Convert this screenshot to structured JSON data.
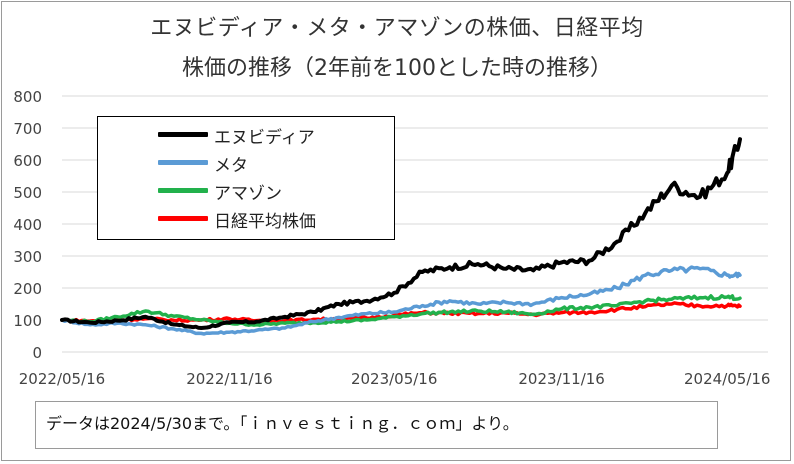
{
  "title_line1": "エヌビディア・メタ・アマゾンの株価、日経平均",
  "title_line2": "株価の推移（2年前を100とした時の推移）",
  "note": "データは2024/5/30まで。「ｉｎｖｅｓｔｉｎｇ．ｃｏｍ」より。",
  "chart_data": {
    "type": "line",
    "title": "エヌビディア・メタ・アマゾンの株価、日経平均 株価の推移（2年前を100とした時の推移）",
    "x_tick_labels": [
      "2022/05/16",
      "2022/11/16",
      "2023/05/16",
      "2023/11/16",
      "2024/05/16"
    ],
    "y_tick_labels": [
      "0",
      "100",
      "200",
      "300",
      "400",
      "500",
      "600",
      "700",
      "800"
    ],
    "xlim": [
      "2022/05/16",
      "2024/05/30"
    ],
    "ylim": [
      0,
      800
    ],
    "grid": "horizontal",
    "legend_position": "upper-left",
    "series": [
      {
        "name": "エヌビディア",
        "color": "#000000",
        "points": [
          [
            "2022/05/16",
            100
          ],
          [
            "2022/06/16",
            92
          ],
          [
            "2022/07/16",
            98
          ],
          [
            "2022/08/16",
            110
          ],
          [
            "2022/09/16",
            86
          ],
          [
            "2022/10/16",
            75
          ],
          [
            "2022/11/16",
            92
          ],
          [
            "2022/12/16",
            95
          ],
          [
            "2023/01/16",
            110
          ],
          [
            "2023/02/16",
            125
          ],
          [
            "2023/03/16",
            150
          ],
          [
            "2023/04/16",
            160
          ],
          [
            "2023/05/16",
            185
          ],
          [
            "2023/06/16",
            250
          ],
          [
            "2023/07/16",
            265
          ],
          [
            "2023/08/16",
            275
          ],
          [
            "2023/09/16",
            260
          ],
          [
            "2023/10/16",
            255
          ],
          [
            "2023/11/16",
            280
          ],
          [
            "2023/12/16",
            285
          ],
          [
            "2024/01/16",
            345
          ],
          [
            "2024/02/16",
            435
          ],
          [
            "2024/03/16",
            520
          ],
          [
            "2024/04/16",
            485
          ],
          [
            "2024/05/16",
            560
          ],
          [
            "2024/05/30",
            665
          ]
        ]
      },
      {
        "name": "メタ",
        "color": "#5b9bd5",
        "points": [
          [
            "2022/05/16",
            100
          ],
          [
            "2022/06/16",
            85
          ],
          [
            "2022/07/16",
            90
          ],
          [
            "2022/08/16",
            85
          ],
          [
            "2022/09/16",
            72
          ],
          [
            "2022/10/16",
            58
          ],
          [
            "2022/11/16",
            62
          ],
          [
            "2022/12/16",
            68
          ],
          [
            "2023/01/16",
            75
          ],
          [
            "2023/02/16",
            95
          ],
          [
            "2023/03/16",
            108
          ],
          [
            "2023/04/16",
            120
          ],
          [
            "2023/05/16",
            125
          ],
          [
            "2023/06/16",
            145
          ],
          [
            "2023/07/16",
            160
          ],
          [
            "2023/08/16",
            150
          ],
          [
            "2023/09/16",
            155
          ],
          [
            "2023/10/16",
            150
          ],
          [
            "2023/11/16",
            170
          ],
          [
            "2023/12/16",
            180
          ],
          [
            "2024/01/16",
            200
          ],
          [
            "2024/02/16",
            240
          ],
          [
            "2024/03/16",
            255
          ],
          [
            "2024/04/16",
            260
          ],
          [
            "2024/05/16",
            240
          ],
          [
            "2024/05/30",
            240
          ]
        ]
      },
      {
        "name": "アマゾン",
        "color": "#22b14c",
        "points": [
          [
            "2022/05/16",
            100
          ],
          [
            "2022/06/16",
            95
          ],
          [
            "2022/07/16",
            110
          ],
          [
            "2022/08/16",
            128
          ],
          [
            "2022/09/16",
            112
          ],
          [
            "2022/10/16",
            100
          ],
          [
            "2022/11/16",
            90
          ],
          [
            "2022/12/16",
            85
          ],
          [
            "2023/01/16",
            90
          ],
          [
            "2023/02/16",
            92
          ],
          [
            "2023/03/16",
            95
          ],
          [
            "2023/04/16",
            100
          ],
          [
            "2023/05/16",
            110
          ],
          [
            "2023/06/16",
            120
          ],
          [
            "2023/07/16",
            125
          ],
          [
            "2023/08/16",
            128
          ],
          [
            "2023/09/16",
            125
          ],
          [
            "2023/10/16",
            118
          ],
          [
            "2023/11/16",
            135
          ],
          [
            "2023/12/16",
            140
          ],
          [
            "2024/01/16",
            145
          ],
          [
            "2024/02/16",
            160
          ],
          [
            "2024/03/16",
            165
          ],
          [
            "2024/04/16",
            170
          ],
          [
            "2024/05/16",
            172
          ],
          [
            "2024/05/30",
            168
          ]
        ]
      },
      {
        "name": "日経平均株価",
        "color": "#ff0000",
        "points": [
          [
            "2022/05/16",
            100
          ],
          [
            "2022/06/16",
            97
          ],
          [
            "2022/07/16",
            100
          ],
          [
            "2022/08/16",
            104
          ],
          [
            "2022/09/16",
            99
          ],
          [
            "2022/10/16",
            100
          ],
          [
            "2022/11/16",
            104
          ],
          [
            "2022/12/16",
            98
          ],
          [
            "2023/01/16",
            98
          ],
          [
            "2023/02/16",
            102
          ],
          [
            "2023/03/16",
            103
          ],
          [
            "2023/04/16",
            106
          ],
          [
            "2023/05/16",
            115
          ],
          [
            "2023/06/16",
            123
          ],
          [
            "2023/07/16",
            121
          ],
          [
            "2023/08/16",
            120
          ],
          [
            "2023/09/16",
            122
          ],
          [
            "2023/10/16",
            117
          ],
          [
            "2023/11/16",
            123
          ],
          [
            "2023/12/16",
            124
          ],
          [
            "2024/01/16",
            133
          ],
          [
            "2024/02/16",
            142
          ],
          [
            "2024/03/16",
            150
          ],
          [
            "2024/04/16",
            144
          ],
          [
            "2024/05/16",
            145
          ],
          [
            "2024/05/30",
            143
          ]
        ]
      }
    ]
  }
}
